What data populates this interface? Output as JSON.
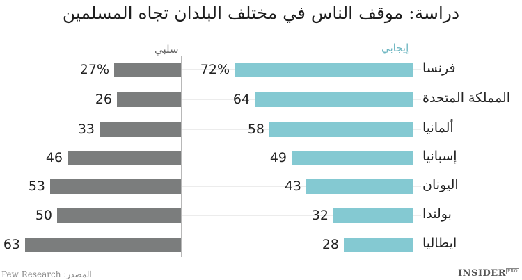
{
  "header": {
    "title": "دراسة: موقف الناس في مختلف البلدان تجاه المسلمين"
  },
  "legend": {
    "negative_label": "سلبي",
    "positive_label": "إيجابي"
  },
  "footer": {
    "source": "Pew Research :المصدر",
    "brand": "INSIDER",
    "brand_suffix": "PRO"
  },
  "colors": {
    "negative": "#7b7d7d",
    "positive": "#84c9d2",
    "positive_label": "#6fb7c2"
  },
  "rows": [
    {
      "country": "فرنسا",
      "positive": 72,
      "negative": 27,
      "positive_label": "72%",
      "negative_label": "27%"
    },
    {
      "country": "المملكة المتحدة",
      "positive": 64,
      "negative": 26,
      "positive_label": "64",
      "negative_label": "26"
    },
    {
      "country": "ألمانيا",
      "positive": 58,
      "negative": 33,
      "positive_label": "58",
      "negative_label": "33"
    },
    {
      "country": "إسبانيا",
      "positive": 49,
      "negative": 46,
      "positive_label": "49",
      "negative_label": "46"
    },
    {
      "country": "اليونان",
      "positive": 43,
      "negative": 53,
      "positive_label": "43",
      "negative_label": "53"
    },
    {
      "country": "بولندا",
      "positive": 32,
      "negative": 50,
      "positive_label": "32",
      "negative_label": "50"
    },
    {
      "country": "ايطاليا",
      "positive": 28,
      "negative": 63,
      "positive_label": "28",
      "negative_label": "63"
    }
  ],
  "chart_data": {
    "type": "bar",
    "orientation": "horizontal",
    "title": "دراسة: موقف الناس في مختلف البلدان تجاه المسلمين",
    "categories": [
      "فرنسا",
      "المملكة المتحدة",
      "ألمانيا",
      "إسبانيا",
      "اليونان",
      "بولندا",
      "ايطاليا"
    ],
    "series": [
      {
        "name": "إيجابي",
        "color": "#84c9d2",
        "values": [
          72,
          64,
          58,
          49,
          43,
          32,
          28
        ]
      },
      {
        "name": "سلبي",
        "color": "#7b7d7d",
        "values": [
          27,
          26,
          33,
          46,
          53,
          50,
          63
        ]
      }
    ],
    "unit": "%",
    "xlabel": "",
    "ylabel": "",
    "grid": false,
    "legend_position": "top",
    "source": "Pew Research"
  }
}
